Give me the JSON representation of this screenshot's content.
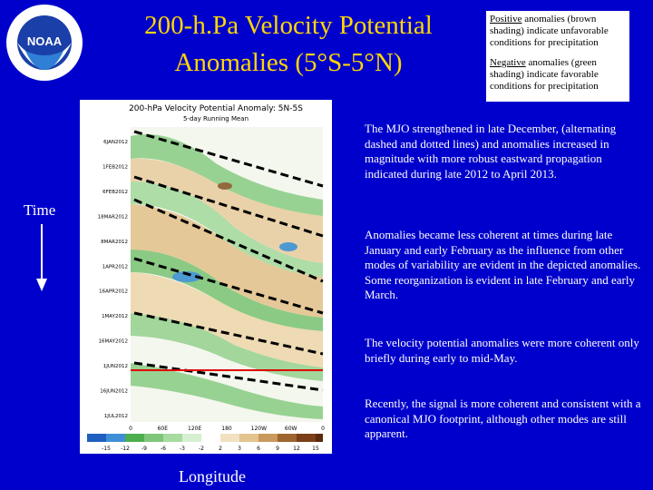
{
  "title": {
    "line1": "200-h.Pa Velocity Potential",
    "line2": "Anomalies (5°S-5°N)"
  },
  "logo": {
    "text": "NOAA",
    "icon": "noaa-logo-icon"
  },
  "legend": {
    "positive_word": "Positive",
    "positive_rest": " anomalies (brown shading) indicate unfavorable conditions for precipitation",
    "negative_word": "Negative",
    "negative_rest": " anomalies (green shading) indicate favorable conditions for precipitation"
  },
  "plot": {
    "title": "200-hPa Velocity Potential Anomaly: 5N-5S",
    "subtitle": "5-day Running Mean",
    "dates": [
      "6JAN2012",
      "1FEB2012",
      "6FEB2012",
      "18MAR2012",
      "8MAR2012",
      "1APR2012",
      "16APR2012",
      "1MAY2012",
      "16MAY2012",
      "1JUN2012",
      "16JUN2012",
      "1JUL2012"
    ],
    "lon_ticks": [
      "0",
      "60E",
      "120E",
      "180",
      "120W",
      "60W",
      "0"
    ],
    "colorbar_ticks": [
      "-15",
      "-12",
      "-9",
      "-6",
      "-3",
      "-2",
      "2",
      "3",
      "6",
      "9",
      "12",
      "15"
    ]
  },
  "labels": {
    "time": "Time",
    "longitude": "Longitude"
  },
  "paragraphs": [
    "The MJO strengthened in late December, (alternating dashed and dotted lines) and anomalies increased in magnitude with more robust eastward propagation indicated during late 2012 to April 2013.",
    "Anomalies became less coherent at times during late January and early February as the influence from other modes of variability are evident in the depicted anomalies. Some reorganization is evident in late February and early March.",
    "The velocity potential anomalies were more coherent only briefly during early to mid-May.",
    "Recently, the signal is more coherent and consistent with a canonical MJO footprint, although other modes are still apparent."
  ]
}
